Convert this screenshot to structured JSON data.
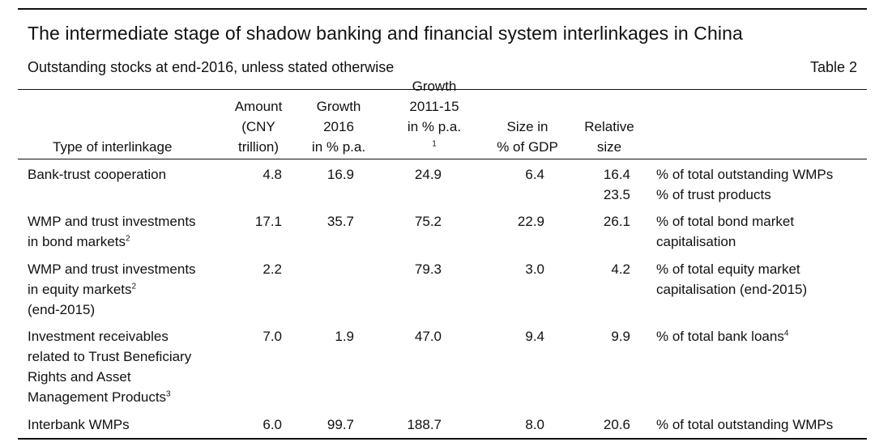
{
  "header": {
    "title": "The intermediate stage of shadow banking and financial system interlinkages in China",
    "subtitle": "Outstanding stocks at end-2016, unless stated otherwise",
    "table_label": "Table 2"
  },
  "columns": {
    "type": [
      "Type of interlinkage"
    ],
    "amount": [
      "Amount",
      "(CNY",
      "trillion)"
    ],
    "growth_2016": [
      "Growth",
      "2016",
      "in % p.a."
    ],
    "growth_2011_15": [
      "Growth",
      "2011-15",
      "in % p.a."
    ],
    "growth_2011_15_note": "1",
    "size_gdp": [
      "Size in",
      "% of GDP"
    ],
    "relative": [
      "Relative",
      "size"
    ]
  },
  "rows": [
    {
      "type": [
        "Bank-trust cooperation"
      ],
      "amount": "4.8",
      "growth_2016": "16.9",
      "growth_2011_15": "24.9",
      "size_gdp": "6.4",
      "relative": [
        "16.4",
        "23.5"
      ],
      "desc": [
        "% of total outstanding WMPs",
        "% of trust products"
      ]
    },
    {
      "type": [
        "WMP and trust investments",
        "in bond markets"
      ],
      "type_note": "2",
      "amount": "17.1",
      "growth_2016": "35.7",
      "growth_2011_15": "75.2",
      "size_gdp": "22.9",
      "relative": [
        "26.1"
      ],
      "desc": [
        "% of total bond market",
        "capitalisation"
      ]
    },
    {
      "type": [
        "WMP and trust investments",
        "in equity markets",
        "(end-2015)"
      ],
      "type_note": "2",
      "amount": "2.2",
      "growth_2016": "",
      "growth_2011_15": "79.3",
      "size_gdp": "3.0",
      "relative": [
        "4.2"
      ],
      "desc": [
        "% of total equity market",
        "capitalisation (end-2015)"
      ]
    },
    {
      "type": [
        "Investment receivables",
        "related to Trust Beneficiary",
        "Rights and Asset",
        "Management Products"
      ],
      "type_note": "3",
      "amount": "7.0",
      "growth_2016": "1.9",
      "growth_2011_15": "47.0",
      "size_gdp": "9.4",
      "relative": [
        "9.9"
      ],
      "desc": [
        "% of total bank loans"
      ],
      "desc_note": "4"
    },
    {
      "type": [
        "Interbank WMPs"
      ],
      "amount": "6.0",
      "growth_2016": "99.7",
      "growth_2011_15": "188.7",
      "size_gdp": "8.0",
      "relative": [
        "20.6"
      ],
      "desc": [
        "% of total outstanding WMPs"
      ]
    }
  ]
}
